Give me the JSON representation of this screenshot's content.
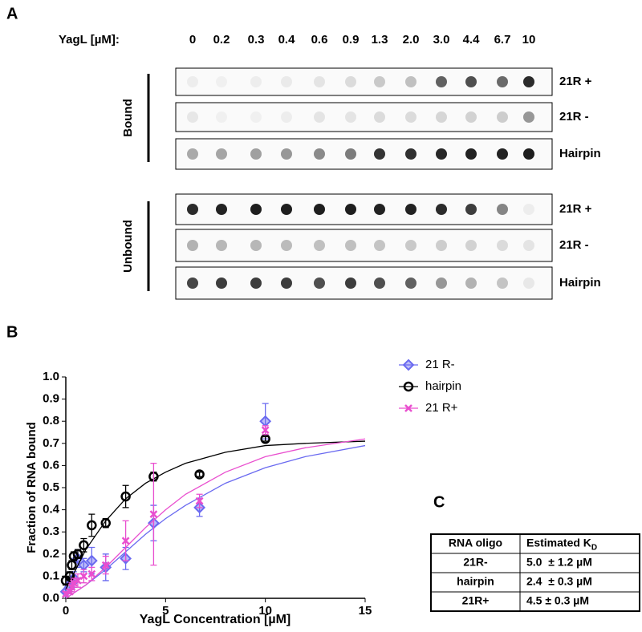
{
  "panel_a": {
    "label": "A",
    "concentration_label": "YagL [µM]:",
    "concentrations": [
      "0",
      "0.2",
      "0.3",
      "0.4",
      "0.6",
      "0.9",
      "1.3",
      "2.0",
      "3.0",
      "4.4",
      "6.7",
      "10"
    ],
    "groups": [
      {
        "label": "Bound",
        "rows": [
          "21R +",
          "21R -",
          "Hairpin"
        ]
      },
      {
        "label": "Unbound",
        "rows": [
          "21R +",
          "21R -",
          "Hairpin"
        ]
      }
    ]
  },
  "chart_data": {
    "type": "scatter",
    "panel_label": "B",
    "x_label": "YagL Concentration [µM]",
    "y_label": "Fraction of RNA bound",
    "x": [
      0,
      0.2,
      0.3,
      0.4,
      0.6,
      0.9,
      1.3,
      2.0,
      3.0,
      4.4,
      6.7,
      10
    ],
    "xlim": [
      0,
      15
    ],
    "xticks": [
      0,
      5,
      10,
      15
    ],
    "ylim": [
      0,
      1
    ],
    "yticks": [
      {
        "value": 0,
        "label": "0.0"
      },
      0.1,
      0.2,
      0.3,
      0.4,
      0.5,
      0.6,
      0.7,
      0.8,
      0.9,
      {
        "value": 1,
        "label": "1.0"
      }
    ],
    "series": [
      {
        "name": "21 R-",
        "color": "#6a6af0",
        "marker": "diamond",
        "values": [
          0.03,
          0.05,
          0.07,
          0.09,
          0.18,
          0.15,
          0.17,
          0.14,
          0.18,
          0.34,
          0.41,
          0.8
        ],
        "errors": [
          0.01,
          0.02,
          0.02,
          0.03,
          0.04,
          0.03,
          0.06,
          0.06,
          0.05,
          0.08,
          0.04,
          0.08
        ],
        "fit": {
          "x": [
            0,
            1,
            2,
            3,
            4,
            5,
            6,
            8,
            10,
            12,
            15
          ],
          "values": [
            0.0,
            0.06,
            0.13,
            0.21,
            0.29,
            0.36,
            0.42,
            0.52,
            0.59,
            0.64,
            0.69
          ]
        }
      },
      {
        "name": "hairpin",
        "color": "#000000",
        "marker": "circle",
        "values": [
          0.08,
          0.1,
          0.15,
          0.19,
          0.2,
          0.24,
          0.33,
          0.34,
          0.46,
          0.55,
          0.56,
          0.72
        ],
        "errors": [
          0.02,
          0.02,
          0.02,
          0.02,
          0.02,
          0.03,
          0.05,
          0.02,
          0.05,
          0.02,
          0.01,
          0.01
        ],
        "fit": {
          "x": [
            0,
            1,
            2,
            3,
            4,
            5,
            6,
            8,
            10,
            12,
            15
          ],
          "values": [
            0.04,
            0.22,
            0.35,
            0.45,
            0.52,
            0.57,
            0.61,
            0.66,
            0.69,
            0.7,
            0.71
          ]
        }
      },
      {
        "name": "21 R+",
        "color": "#e94fcf",
        "marker": "x",
        "values": [
          0.02,
          0.03,
          0.05,
          0.07,
          0.08,
          0.1,
          0.11,
          0.15,
          0.26,
          0.38,
          0.44,
          0.76
        ],
        "errors": [
          0.01,
          0.01,
          0.02,
          0.02,
          0.03,
          0.03,
          0.03,
          0.04,
          0.09,
          0.23,
          0.03,
          0.02
        ],
        "fit": {
          "x": [
            0,
            1,
            2,
            3,
            4,
            5,
            6,
            8,
            10,
            12,
            15
          ],
          "values": [
            0.0,
            0.06,
            0.14,
            0.23,
            0.32,
            0.4,
            0.47,
            0.57,
            0.64,
            0.68,
            0.72
          ]
        }
      }
    ]
  },
  "panel_c": {
    "label": "C",
    "header": [
      "RNA oligo",
      "Estimated K"
    ],
    "header_subscript": "D",
    "rows": [
      [
        "21R-",
        "5.0  ± 1.2 µM"
      ],
      [
        "hairpin",
        "2.4  ± 0.3 µM"
      ],
      [
        "21R+",
        "4.5 ± 0.3 µM"
      ]
    ]
  }
}
